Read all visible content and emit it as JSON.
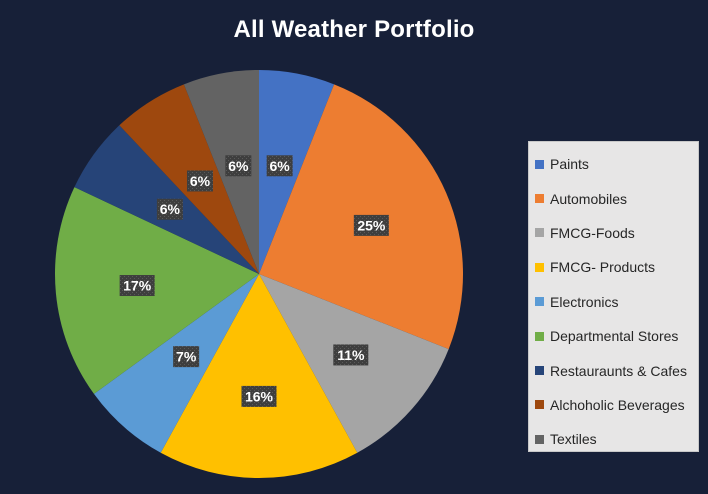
{
  "chart_data": {
    "type": "pie",
    "title": "All Weather Portfolio",
    "categories": [
      "Paints",
      "Automobiles",
      "FMCG-Foods",
      "FMCG- Products",
      "Electronics",
      "Departmental Stores",
      "Restauraunts & Cafes",
      "Alchoholic Beverages",
      "Textiles"
    ],
    "values": [
      6,
      25,
      11,
      16,
      7,
      17,
      6,
      6,
      6
    ],
    "labels": [
      "6%",
      "25%",
      "11%",
      "16%",
      "7%",
      "17%",
      "6%",
      "6%",
      "6%"
    ],
    "colors": [
      "#4472c4",
      "#ed7d31",
      "#a5a5a5",
      "#ffc000",
      "#5b9bd5",
      "#70ad47",
      "#264478",
      "#9e480e",
      "#636363"
    ],
    "legend_position": "right",
    "start_angle": "12 o'clock",
    "direction": "clockwise"
  }
}
